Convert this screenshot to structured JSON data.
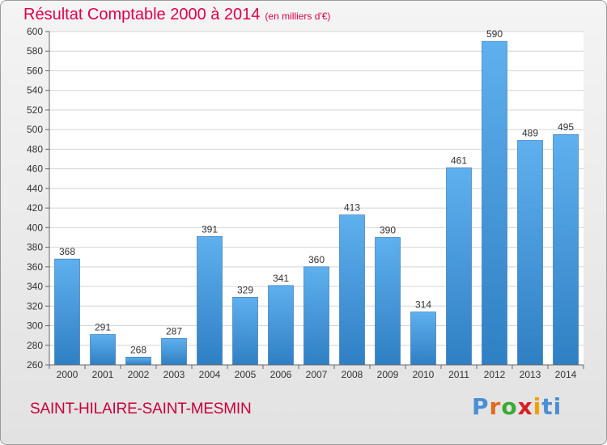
{
  "header": {
    "title": "Résultat Comptable 2000 à 2014",
    "subtitle": "(en milliers d'€)"
  },
  "footer": {
    "commune": "SAINT-HILAIRE-SAINT-MESMIN",
    "logo_letters": [
      "P",
      "r",
      "o",
      "x",
      "i",
      "ti"
    ]
  },
  "colors": {
    "bar": "#3d8fd4",
    "bar_light": "#5fb0ee",
    "title": "#e0004b"
  },
  "chart_data": {
    "type": "bar",
    "title": "Résultat Comptable 2000 à 2014",
    "subtitle": "(en milliers d'€)",
    "categories": [
      "2000",
      "2001",
      "2002",
      "2003",
      "2004",
      "2005",
      "2006",
      "2007",
      "2008",
      "2009",
      "2010",
      "2011",
      "2012",
      "2013",
      "2014"
    ],
    "values": [
      368,
      291,
      268,
      287,
      391,
      329,
      341,
      360,
      413,
      390,
      314,
      461,
      590,
      489,
      495
    ],
    "ylim": [
      260,
      600
    ],
    "yticks": [
      260,
      280,
      300,
      320,
      340,
      360,
      380,
      400,
      420,
      440,
      460,
      480,
      500,
      520,
      540,
      560,
      580,
      600
    ],
    "grid": true,
    "legend": "none"
  }
}
